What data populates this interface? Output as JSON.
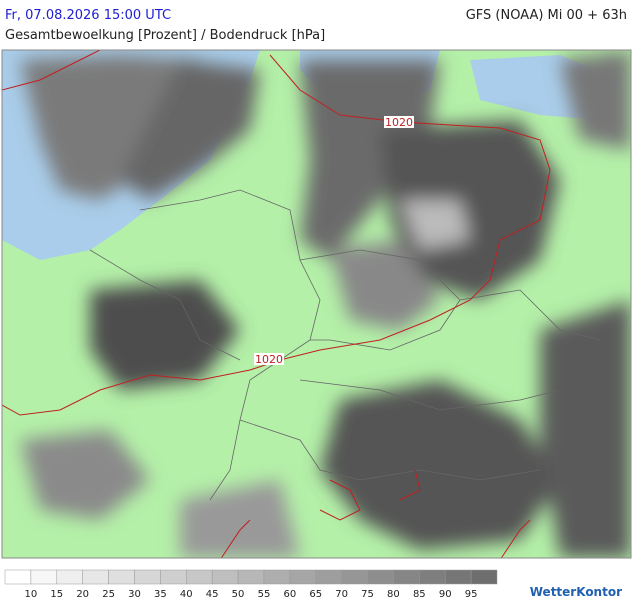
{
  "header": {
    "datetime": "Fr, 07.08.2026 15:00 UTC",
    "model": "GFS (NOAA) Mi 00 + 63h",
    "title": "Gesamtbewoelkung [Prozent] / Bodendruck [hPa]"
  },
  "map": {
    "isobar_labels": [
      "1020",
      "1020"
    ]
  },
  "legend": {
    "labels": [
      10,
      15,
      20,
      25,
      30,
      35,
      40,
      45,
      50,
      55,
      60,
      65,
      70,
      75,
      80,
      85,
      90,
      95
    ]
  },
  "logo": "WetterKontor"
}
